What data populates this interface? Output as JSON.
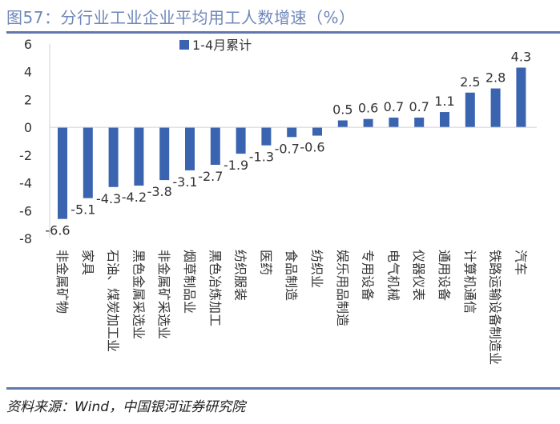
{
  "title": "图57：分行业工业企业平均用工人数增速（%）",
  "source": "资料来源：Wind，中国银河证券研究院",
  "colors": {
    "bar": "#3a64b0",
    "title": "#6f87b9"
  },
  "chart_data": {
    "type": "bar",
    "title": "图57：分行业工业企业平均用工人数增速（%）",
    "xlabel": "",
    "ylabel": "",
    "ylim": [
      -8,
      6
    ],
    "yticks": [
      "6",
      "4",
      "2",
      "0",
      "-2",
      "-4",
      "-6",
      "-8"
    ],
    "legend": {
      "label": "1-4月累计",
      "position": "top-center"
    },
    "categories": [
      "非金属矿物",
      "家具",
      "石油、煤炭加工业",
      "黑色金属采选业",
      "非金属矿采选业",
      "烟草制品业",
      "黑色冶炼加工",
      "纺织服装",
      "医药",
      "食品制造",
      "纺织业",
      "娱乐用品制造",
      "专用设备",
      "电气机械",
      "仪器仪表",
      "通用设备",
      "计算机通信",
      "铁路运输设备制造业",
      "汽车"
    ],
    "series": [
      {
        "name": "1-4月累计",
        "values": [
          -6.6,
          -5.1,
          -4.3,
          -4.2,
          -3.8,
          -3.1,
          -2.7,
          -1.9,
          -1.3,
          -0.7,
          -0.6,
          0.5,
          0.6,
          0.7,
          0.7,
          1.1,
          2.5,
          2.8,
          4.3
        ]
      }
    ],
    "data_labels": [
      "-6.6",
      "-5.1",
      "-4.3",
      "-4.2",
      "-3.8",
      "-3.1",
      "-2.7",
      "-1.9",
      "-1.3",
      "-0.7",
      "-0.6",
      "0.5",
      "0.6",
      "0.7",
      "0.7",
      "1.1",
      "2.5",
      "2.8",
      "4.3"
    ]
  }
}
